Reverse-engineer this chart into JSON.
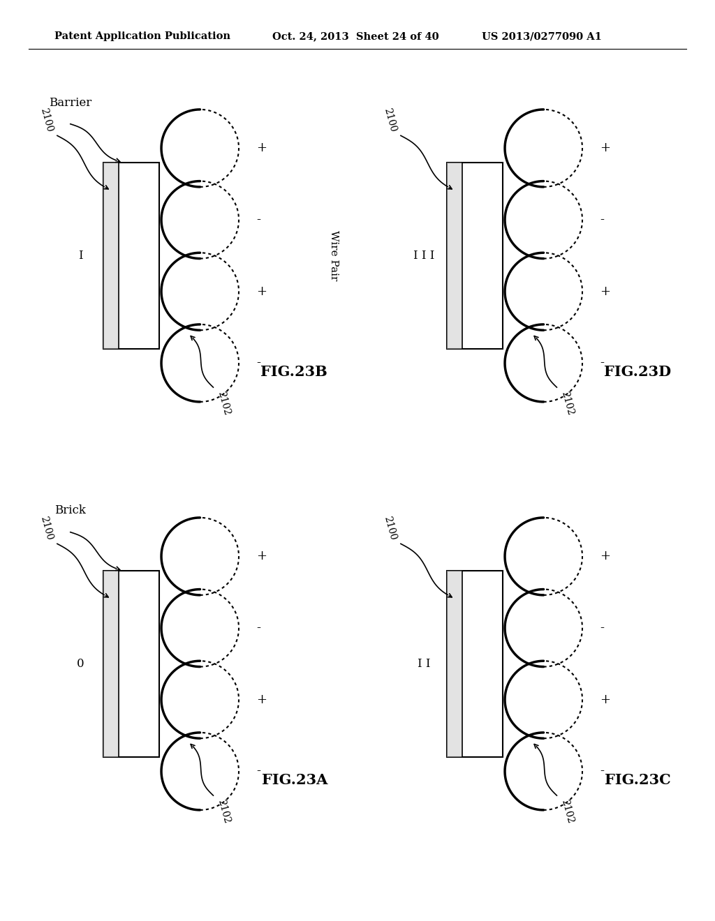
{
  "bg_color": "#ffffff",
  "header_left": "Patent Application Publication",
  "header_mid": "Oct. 24, 2013  Sheet 24 of 40",
  "header_right": "US 2013/0277090 A1",
  "figures": [
    {
      "name": "FIG.23B",
      "panel": "top_left",
      "barrier_label": "Barrier",
      "barrier_mark": "I",
      "wire_label": "Wire Pair",
      "plus_minus": [
        "+",
        "-",
        "+",
        "-"
      ]
    },
    {
      "name": "FIG.23D",
      "panel": "top_right",
      "barrier_label": null,
      "barrier_mark": "I I I",
      "wire_label": null,
      "plus_minus": [
        "+",
        "-",
        "+",
        "-"
      ]
    },
    {
      "name": "FIG.23A",
      "panel": "bot_left",
      "barrier_label": "Brick",
      "barrier_mark": "0",
      "wire_label": null,
      "plus_minus": [
        "+",
        "-",
        "+",
        "-"
      ]
    },
    {
      "name": "FIG.23C",
      "panel": "bot_right",
      "barrier_label": null,
      "barrier_mark": "I I",
      "wire_label": null,
      "plus_minus": [
        "+",
        "-",
        "+",
        "-"
      ]
    }
  ]
}
